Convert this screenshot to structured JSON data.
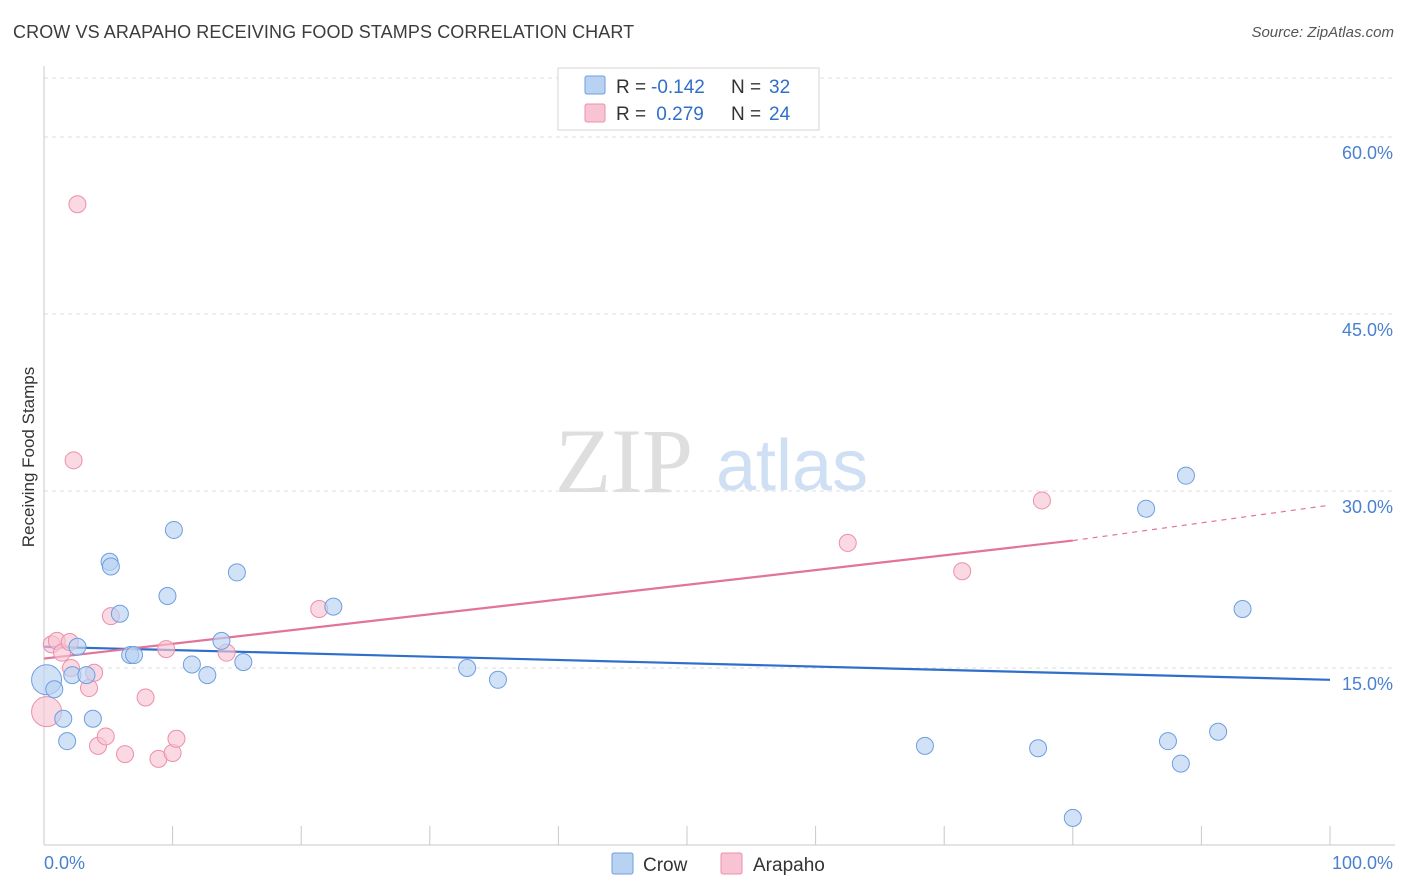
{
  "chart_data": {
    "type": "scatter",
    "title": "CROW VS ARAPAHO RECEIVING FOOD STAMPS CORRELATION CHART",
    "source": "Source: ZipAtlas.com",
    "xlabel": "",
    "ylabel": "Receiving Food Stamps",
    "xlim": [
      0,
      100
    ],
    "ylim": [
      0,
      65
    ],
    "x_tick_labels": [
      "0.0%",
      "100.0%"
    ],
    "y_ticks": [
      15,
      30,
      45,
      60
    ],
    "y_tick_labels": [
      "15.0%",
      "30.0%",
      "45.0%",
      "60.0%"
    ],
    "watermark": "ZIPatlas",
    "colors": {
      "crow_fill": "#b8d2f2",
      "crow_stroke": "#6e9ee0",
      "crow_line": "#2f6fc9",
      "arapaho_fill": "#f8c4d4",
      "arapaho_stroke": "#ec8fab",
      "arapaho_line": "#e2749a",
      "stat_value": "#2f6fc9",
      "grid": "#dddddd"
    },
    "stats": [
      {
        "series": "Crow",
        "r_label": "R =",
        "r": "-0.142",
        "n_label": "N =",
        "n": "32"
      },
      {
        "series": "Arapaho",
        "r_label": "R =",
        "r": " 0.279",
        "n_label": "N =",
        "n": "24"
      }
    ],
    "series": [
      {
        "name": "Crow",
        "trend": {
          "x0": 0,
          "y0": 16.8,
          "x1": 100,
          "y1": 14.0
        },
        "points": [
          [
            0.2,
            14.0
          ],
          [
            0.8,
            13.2
          ],
          [
            1.5,
            10.7
          ],
          [
            1.8,
            8.8
          ],
          [
            2.2,
            14.4
          ],
          [
            2.6,
            16.8
          ],
          [
            3.3,
            14.4
          ],
          [
            3.8,
            10.7
          ],
          [
            5.1,
            24.0
          ],
          [
            5.2,
            23.6
          ],
          [
            5.9,
            19.6
          ],
          [
            6.7,
            16.1
          ],
          [
            7.0,
            16.1
          ],
          [
            9.6,
            21.1
          ],
          [
            10.1,
            26.7
          ],
          [
            11.5,
            15.3
          ],
          [
            12.7,
            14.4
          ],
          [
            13.8,
            17.3
          ],
          [
            15.0,
            23.1
          ],
          [
            15.5,
            15.5
          ],
          [
            22.5,
            20.2
          ],
          [
            32.9,
            15.0
          ],
          [
            35.3,
            14.0
          ],
          [
            68.5,
            8.4
          ],
          [
            77.3,
            8.2
          ],
          [
            80.0,
            2.3
          ],
          [
            85.7,
            28.5
          ],
          [
            87.4,
            8.8
          ],
          [
            88.4,
            6.9
          ],
          [
            88.8,
            31.3
          ],
          [
            91.3,
            9.6
          ],
          [
            93.2,
            20.0
          ]
        ]
      },
      {
        "name": "Arapaho",
        "trend": {
          "x0": 0,
          "y0": 15.8,
          "x1": 80,
          "y1": 25.8,
          "dash_x1": 100,
          "dash_y1": 28.8
        },
        "points": [
          [
            0.2,
            11.3
          ],
          [
            0.6,
            17.0
          ],
          [
            1.0,
            17.3
          ],
          [
            1.4,
            16.3
          ],
          [
            2.0,
            17.2
          ],
          [
            2.1,
            15.0
          ],
          [
            2.3,
            32.6
          ],
          [
            2.6,
            54.3
          ],
          [
            3.5,
            13.3
          ],
          [
            3.9,
            14.6
          ],
          [
            4.2,
            8.4
          ],
          [
            4.8,
            9.2
          ],
          [
            5.2,
            19.4
          ],
          [
            6.3,
            7.7
          ],
          [
            7.9,
            12.5
          ],
          [
            8.9,
            7.3
          ],
          [
            9.5,
            16.6
          ],
          [
            10.0,
            7.8
          ],
          [
            10.3,
            9.0
          ],
          [
            14.2,
            16.3
          ],
          [
            21.4,
            20.0
          ],
          [
            62.5,
            25.6
          ],
          [
            71.4,
            23.2
          ],
          [
            77.6,
            29.2
          ]
        ]
      }
    ]
  }
}
